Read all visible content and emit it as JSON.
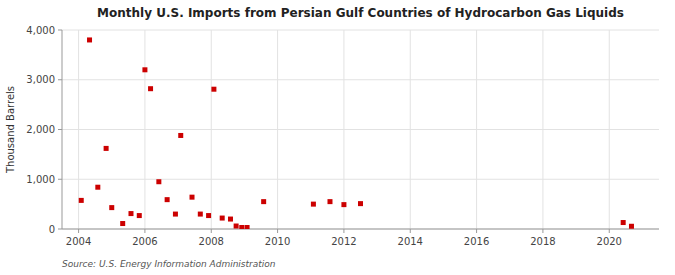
{
  "chart_data": {
    "type": "scatter",
    "title": "Monthly U.S. Imports from Persian Gulf Countries of Hydrocarbon Gas Liquids",
    "ylabel": "Thousand Barrels",
    "source": "Source: U.S. Energy Information Administration",
    "color": "#cc0000",
    "marker": "square",
    "grid": true,
    "xlim": [
      2003.5,
      2021.5
    ],
    "ylim": [
      0,
      4000
    ],
    "xticks": [
      2004,
      2006,
      2008,
      2010,
      2012,
      2014,
      2016,
      2018,
      2020
    ],
    "yticks": [
      0,
      {
        "value": 1000,
        "label": "1,000"
      },
      {
        "value": 2000,
        "label": "2,000"
      },
      {
        "value": 3000,
        "label": "3,000"
      },
      {
        "value": 4000,
        "label": "4,000"
      }
    ],
    "x": [
      2004.08,
      2004.33,
      2004.58,
      2004.83,
      2005.0,
      2005.33,
      2005.58,
      2005.83,
      2006.0,
      2006.17,
      2006.42,
      2006.67,
      2006.92,
      2007.08,
      2007.42,
      2007.67,
      2007.92,
      2008.08,
      2008.33,
      2008.58,
      2008.75,
      2008.92,
      2009.08,
      2009.58,
      2011.08,
      2011.58,
      2012.0,
      2012.5,
      2020.42,
      2020.67
    ],
    "values": [
      575,
      3800,
      840,
      1620,
      430,
      110,
      310,
      270,
      3200,
      2820,
      950,
      590,
      300,
      1880,
      640,
      300,
      270,
      2810,
      220,
      200,
      60,
      30,
      30,
      550,
      500,
      550,
      490,
      510,
      130,
      55
    ]
  }
}
